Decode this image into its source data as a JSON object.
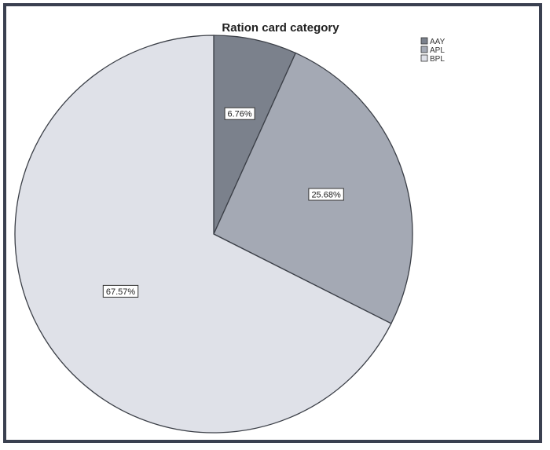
{
  "chart_data": {
    "type": "pie",
    "title": "Ration card category",
    "slices": [
      {
        "label": "AAY",
        "value": 6.76,
        "value_label": "6.76%",
        "color": "#7b818c"
      },
      {
        "label": "APL",
        "value": 25.68,
        "value_label": "25.68%",
        "color": "#a4a9b4"
      },
      {
        "label": "BPL",
        "value": 67.57,
        "value_label": "67.57%",
        "color": "#dfe1e8"
      }
    ],
    "legend": {
      "placement": "top-right",
      "items": [
        "AAY",
        "APL",
        "BPL"
      ]
    },
    "start_angle": "12 o'clock",
    "direction": "clockwise"
  }
}
